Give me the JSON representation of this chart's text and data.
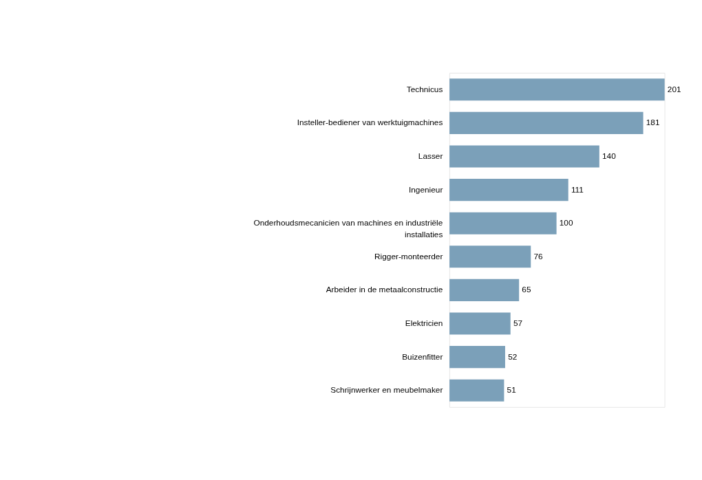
{
  "chart_data": {
    "type": "bar",
    "orientation": "horizontal",
    "data_labels": true,
    "categories": [
      "Technicus",
      "Insteller-bediener van werktuigmachines",
      "Lasser",
      "Ingenieur",
      "Onderhoudsmecanicien van machines en industriële installaties",
      "Rigger-monteerder",
      "Arbeider in de metaalconstructie",
      "Elektricien",
      "Buizenfitter",
      "Schrijnwerker en meubelmaker"
    ],
    "values": [
      201,
      181,
      140,
      111,
      100,
      76,
      65,
      57,
      52,
      51
    ],
    "color": "#7ba0b9"
  }
}
